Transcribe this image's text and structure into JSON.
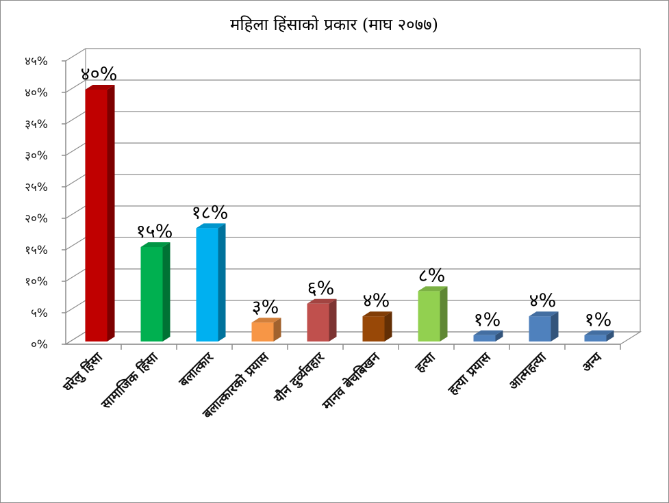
{
  "chart_data": {
    "type": "bar",
    "title": "महिला हिंसाको प्रकार (माघ २०७७)",
    "xlabel": "",
    "ylabel": "",
    "ylim": [
      0,
      45
    ],
    "yticks": [
      {
        "value": 0,
        "label": "०%"
      },
      {
        "value": 5,
        "label": "५%"
      },
      {
        "value": 10,
        "label": "१०%"
      },
      {
        "value": 15,
        "label": "१५%"
      },
      {
        "value": 20,
        "label": "२०%"
      },
      {
        "value": 25,
        "label": "२५%"
      },
      {
        "value": 30,
        "label": "३०%"
      },
      {
        "value": 35,
        "label": "३५%"
      },
      {
        "value": 40,
        "label": "४०%"
      },
      {
        "value": 45,
        "label": "४५%"
      }
    ],
    "categories": [
      "घरेलु हिंसा",
      "सामाजिक हिंसा",
      "बलात्कार",
      "बलात्कारको प्रयास",
      "यौन दुर्व्यवहार",
      "मानव बेचबिखन",
      "हत्या",
      "हत्या प्रयास",
      "आत्महत्या",
      "अन्य"
    ],
    "values": [
      40,
      15,
      18,
      3,
      6,
      4,
      8,
      1,
      4,
      1
    ],
    "data_labels": [
      "४०%",
      "१५%",
      "१८%",
      "३%",
      "६%",
      "४%",
      "८%",
      "१%",
      "४%",
      "१%"
    ],
    "colors": [
      "#c00000",
      "#00b050",
      "#00b0f0",
      "#f79646",
      "#c0504d",
      "#984807",
      "#92d050",
      "#4f81bd",
      "#4f81bd",
      "#4f81bd"
    ],
    "grid": true,
    "legend": "none",
    "style": "3d-column"
  }
}
